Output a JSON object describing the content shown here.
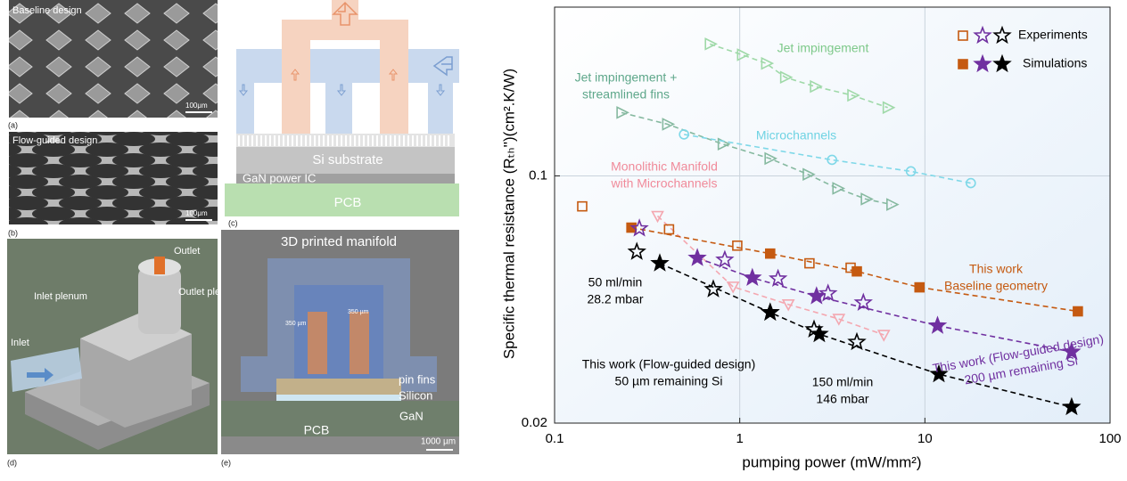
{
  "panels": {
    "a": {
      "label": "(a)",
      "title": "Baseline design",
      "scale": "100μm"
    },
    "b": {
      "label": "(b)",
      "title": "Flow-guided design",
      "scale": "100μm"
    },
    "c": {
      "label": "(c)",
      "layers": [
        "Si substrate",
        "GaN power IC",
        "PCB"
      ]
    },
    "d": {
      "label": "(d)",
      "texts": [
        "Outlet",
        "Inlet plenum",
        "Outlet plenum",
        "Inlet"
      ]
    },
    "e": {
      "label": "(e)",
      "title": "3D printed manifold",
      "pitch": [
        "350 µm",
        "350 µm"
      ],
      "layers": [
        "pin fins",
        "Silicon",
        "GaN",
        "PCB"
      ],
      "scale": "1000 µm"
    }
  },
  "chart_data": {
    "type": "scatter",
    "xlabel": "pumping power (mW/mm²)",
    "ylabel": "Specific thermal resistance (Rₜₕ'')(cm².K/W)",
    "log_x": true,
    "log_y": true,
    "grid": true,
    "xlim": [
      0.1,
      100
    ],
    "ylim": [
      0.02,
      0.3
    ],
    "xticks": [
      0.1,
      1,
      10,
      100
    ],
    "yticks": [
      0.02,
      0.1
    ],
    "legend": {
      "position": "upper right",
      "entries": [
        "Experiments",
        "Simulations"
      ]
    },
    "series": [
      {
        "marker": "tri-right",
        "filled": false,
        "fit": true,
        "color": "#9fd9a8",
        "x": [
          0.69,
          1.03,
          1.39,
          1.76,
          2.55,
          4.06,
          6.3
        ],
        "values": [
          0.236,
          0.22,
          0.208,
          0.19,
          0.179,
          0.169,
          0.156
        ]
      },
      {
        "marker": "tri-right",
        "filled": false,
        "fit": true,
        "color": "#86b9a0",
        "x": [
          0.23,
          0.406,
          0.81,
          1.45,
          2.33,
          3.37,
          4.8,
          6.6
        ],
        "values": [
          0.151,
          0.14,
          0.123,
          0.112,
          0.101,
          0.0922,
          0.086,
          0.083
        ]
      },
      {
        "marker": "circle",
        "filled": false,
        "fit": true,
        "color": "#7fd8e8",
        "x": [
          0.5,
          3.15,
          8.4,
          17.7
        ],
        "values": [
          0.131,
          0.111,
          0.103,
          0.0954
        ]
      },
      {
        "marker": "tri-down",
        "filled": false,
        "fit": true,
        "color": "#f4a7b0",
        "x": [
          0.36,
          0.92,
          1.83,
          3.43,
          6.0
        ],
        "values": [
          0.077,
          0.0486,
          0.0433,
          0.0394,
          0.0355
        ]
      },
      {
        "marker": "square",
        "filled": false,
        "fit": false,
        "color": "#c55a11",
        "x": [
          0.141,
          0.415,
          0.97,
          2.38,
          3.97
        ],
        "values": [
          0.082,
          0.0706,
          0.0635,
          0.0566,
          0.055
        ]
      },
      {
        "marker": "square",
        "filled": true,
        "fit": true,
        "color": "#c55a11",
        "x": [
          0.26,
          1.46,
          4.29,
          9.35,
          67
        ],
        "values": [
          0.0714,
          0.0603,
          0.0537,
          0.0484,
          0.0414
        ]
      },
      {
        "marker": "star",
        "filled": false,
        "fit": false,
        "color": "#7030a0",
        "x": [
          0.287,
          0.83,
          1.61,
          3.0,
          4.65
        ],
        "values": [
          0.071,
          0.0579,
          0.0512,
          0.0465,
          0.0438
        ]
      },
      {
        "marker": "star",
        "filled": true,
        "fit": true,
        "color": "#7030a0",
        "x": [
          0.59,
          1.17,
          2.6,
          11.7,
          62
        ],
        "values": [
          0.0586,
          0.0515,
          0.0457,
          0.0377,
          0.0318
        ]
      },
      {
        "marker": "star",
        "filled": false,
        "fit": false,
        "color": "#000000",
        "x": [
          0.278,
          0.72,
          1.46,
          2.52,
          4.29
        ],
        "values": [
          0.061,
          0.0478,
          0.0411,
          0.0368,
          0.0339
        ]
      },
      {
        "marker": "star",
        "filled": true,
        "fit": true,
        "color": "#000000",
        "x": [
          0.37,
          1.46,
          2.69,
          11.9,
          62
        ],
        "values": [
          0.0566,
          0.0411,
          0.0357,
          0.0275,
          0.0222
        ]
      }
    ],
    "annotations": [
      {
        "lines": [
          "Jet impingement"
        ],
        "color": "#7ec98a"
      },
      {
        "lines": [
          "Jet impingement +",
          "streamlined fins"
        ],
        "color": "#5ea78a"
      },
      {
        "lines": [
          "Microchannels"
        ],
        "color": "#6fd3e3"
      },
      {
        "lines": [
          "Monolithic Manifold",
          "with Microchannels"
        ],
        "color": "#f08a9a"
      },
      {
        "lines": [
          "This work",
          "Baseline geometry"
        ],
        "color": "#c55a11"
      },
      {
        "lines": [
          "50 ml/min",
          "28.2 mbar"
        ],
        "color": "#000000"
      },
      {
        "lines": [
          "This work (Flow-guided design)",
          "50 µm remaining Si"
        ],
        "color": "#000000"
      },
      {
        "lines": [
          "150 ml/min",
          "146 mbar"
        ],
        "color": "#000000"
      },
      {
        "lines": [
          "This work (Flow-guided design)",
          "200 µm remaining Si"
        ],
        "color": "#7030a0"
      }
    ]
  }
}
